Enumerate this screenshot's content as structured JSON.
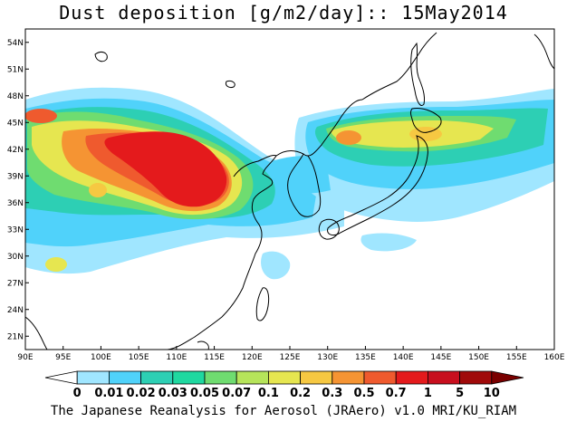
{
  "title": "Dust deposition [g/m2/day]:: 15May2014",
  "credit": "The Japanese Reanalysis for Aerosol (JRAero) v1.0 MRI/KU_RIAM",
  "map": {
    "lon_range": [
      90,
      160
    ],
    "lat_range": [
      19.5,
      55.5
    ],
    "lon_ticks": [
      "90E",
      "95E",
      "100E",
      "105E",
      "110E",
      "115E",
      "120E",
      "125E",
      "130E",
      "135E",
      "140E",
      "145E",
      "150E",
      "155E",
      "160E"
    ],
    "lat_ticks": [
      "21N",
      "24N",
      "27N",
      "30N",
      "33N",
      "36N",
      "39N",
      "42N",
      "45N",
      "48N",
      "51N",
      "54N"
    ]
  },
  "colorbar": {
    "labels": [
      "0",
      "0.01",
      "0.02",
      "0.03",
      "0.05",
      "0.07",
      "0.1",
      "0.2",
      "0.3",
      "0.5",
      "0.7",
      "1",
      "5",
      "10"
    ],
    "colors": [
      "#ffffff",
      "#a0e6ff",
      "#50d2fa",
      "#2dcfb4",
      "#1fd8a0",
      "#6fdc70",
      "#b6e45a",
      "#e6e650",
      "#f6c842",
      "#f59433",
      "#ef5a2e",
      "#e41a1c",
      "#c80f1e",
      "#a00a0a",
      "#7a0000"
    ]
  }
}
